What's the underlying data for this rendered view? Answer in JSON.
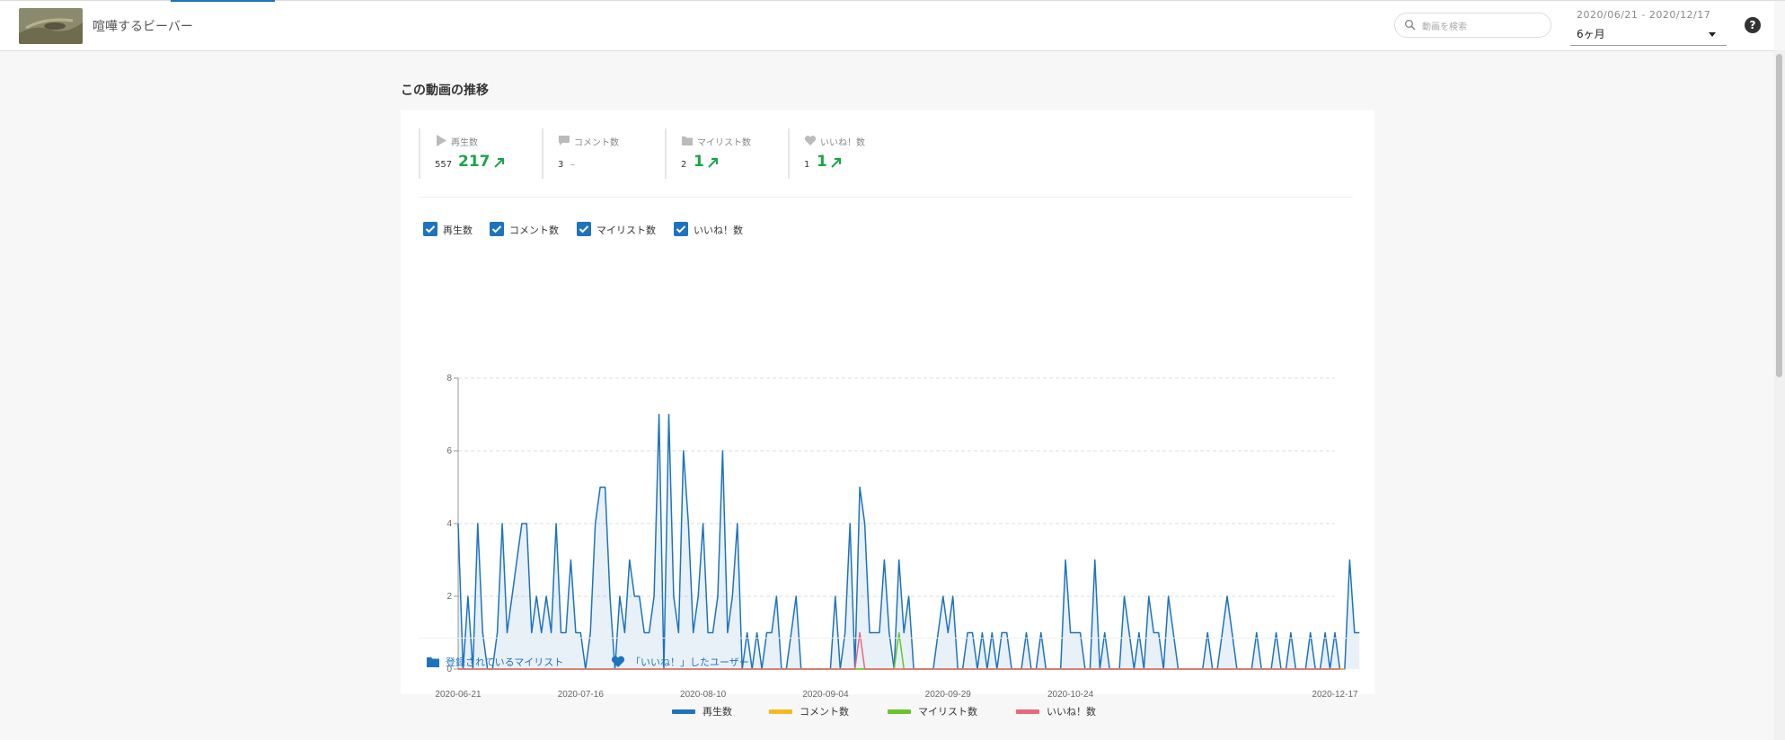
{
  "header": {
    "video_title": "喧嘩するビーバー",
    "search_placeholder": "動画を検索",
    "date_range": "2020/06/21 - 2020/12/17",
    "period_label": "6ヶ月",
    "help_label": "?"
  },
  "section": {
    "title": "この動画の推移"
  },
  "stats": [
    {
      "icon": "play-icon",
      "label": "再生数",
      "total": "557",
      "delta": "217",
      "trend": "up"
    },
    {
      "icon": "comment-icon",
      "label": "コメント数",
      "total": "3",
      "delta": "",
      "trend": "none",
      "dash": "–"
    },
    {
      "icon": "folder-icon",
      "label": "マイリスト数",
      "total": "2",
      "delta": "1",
      "trend": "up"
    },
    {
      "icon": "heart-icon",
      "label": "いいね！数",
      "total": "1",
      "delta": "1",
      "trend": "up"
    }
  ],
  "filters": [
    {
      "label": "再生数",
      "checked": true
    },
    {
      "label": "コメント数",
      "checked": true
    },
    {
      "label": "マイリスト数",
      "checked": true
    },
    {
      "label": "いいね！数",
      "checked": true
    }
  ],
  "links": {
    "mylist": "登録されているマイリスト",
    "likes": "「いいね！」したユーザー"
  },
  "colors": {
    "accent": "#1e73be",
    "positive": "#1aa54a",
    "views": "#1e73be",
    "comments": "#f5b91e",
    "mylists": "#6ac42c",
    "likes": "#e8687c"
  },
  "chart_data": {
    "type": "line",
    "x_start": "2020-06-21",
    "x_end": "2020-12-17",
    "x_tick_labels": [
      "2020-06-21",
      "2020-07-16",
      "2020-08-10",
      "2020-09-04",
      "2020-09-29",
      "2020-10-24",
      "2020-12-17"
    ],
    "y_ticks": [
      0,
      2,
      4,
      6,
      8
    ],
    "ylim": [
      0,
      8
    ],
    "grid": true,
    "legend": "bottom-center",
    "series": [
      {
        "name": "再生数",
        "color": "#1e73be",
        "area": true,
        "values": [
          4,
          0,
          2,
          0,
          4,
          1,
          0,
          0,
          1,
          4,
          1,
          2,
          3,
          4,
          4,
          1,
          2,
          1,
          2,
          1,
          4,
          1,
          1,
          3,
          1,
          1,
          0,
          1,
          4,
          5,
          5,
          2,
          0,
          2,
          1,
          3,
          2,
          2,
          1,
          1,
          2,
          7,
          0,
          7,
          2,
          1,
          6,
          4,
          1,
          2,
          4,
          1,
          1,
          2,
          6,
          1,
          2,
          4,
          0,
          1,
          0,
          1,
          0,
          1,
          1,
          2,
          0,
          0,
          1,
          2,
          0,
          0,
          0,
          0,
          0,
          0,
          0,
          2,
          0,
          1,
          4,
          0,
          5,
          4,
          1,
          1,
          1,
          3,
          1,
          0,
          3,
          1,
          2,
          0,
          0,
          0,
          0,
          0,
          1,
          2,
          1,
          2,
          0,
          0,
          1,
          1,
          0,
          1,
          0,
          1,
          0,
          1,
          1,
          0,
          0,
          0,
          1,
          0,
          0,
          1,
          0,
          0,
          0,
          0,
          3,
          1,
          1,
          1,
          0,
          0,
          3,
          0,
          1,
          0,
          0,
          0,
          2,
          1,
          0,
          1,
          0,
          2,
          1,
          1,
          0,
          2,
          1,
          0,
          0,
          0,
          0,
          0,
          0,
          1,
          0,
          0,
          1,
          2,
          1,
          0,
          0,
          0,
          0,
          1,
          0,
          0,
          0,
          1,
          0,
          0,
          1,
          0,
          0,
          0,
          1,
          0,
          0,
          1,
          0,
          1,
          0,
          0,
          3,
          1,
          1
        ]
      },
      {
        "name": "コメント数",
        "color": "#f5b91e",
        "area": false,
        "values": [
          0,
          0,
          0,
          0,
          0,
          0,
          0,
          0,
          0,
          0,
          0,
          0,
          0,
          0,
          0,
          0,
          0,
          0,
          0,
          0,
          0,
          0,
          0,
          0,
          0,
          0,
          0,
          0,
          0,
          0,
          0,
          0,
          0,
          0,
          0,
          0,
          0,
          0,
          0,
          0,
          0,
          0,
          0,
          0,
          0,
          0,
          0,
          0,
          0,
          0,
          0,
          0,
          0,
          0,
          0,
          0,
          0,
          0,
          0,
          0,
          0,
          0,
          0,
          0,
          0,
          0,
          0,
          0,
          0,
          0,
          0,
          0,
          0,
          0,
          0,
          0,
          0,
          0,
          0,
          0,
          0,
          0,
          0,
          0,
          0,
          0,
          0,
          0,
          0,
          0,
          0,
          0,
          0,
          0,
          0,
          0,
          0,
          0,
          0,
          0,
          0,
          0,
          0,
          0,
          0,
          0,
          0,
          0,
          0,
          0,
          0,
          0,
          0,
          0,
          0,
          0,
          0,
          0,
          0,
          0,
          0,
          0,
          0,
          0,
          0,
          0,
          0,
          0,
          0,
          0,
          0,
          0,
          0,
          0,
          0,
          0,
          0,
          0,
          0,
          0,
          0,
          0,
          0,
          0,
          0,
          0,
          0,
          0,
          0,
          0,
          0,
          0,
          0,
          0,
          0,
          0,
          0,
          0,
          0,
          0,
          0,
          0,
          0,
          0,
          0,
          0,
          0,
          0,
          0,
          0,
          0,
          0,
          0,
          0,
          0,
          0,
          0,
          0,
          0,
          0,
          0,
          0
        ]
      },
      {
        "name": "マイリスト数",
        "color": "#6ac42c",
        "area": false,
        "values": [
          0,
          0,
          0,
          0,
          0,
          0,
          0,
          0,
          0,
          0,
          0,
          0,
          0,
          0,
          0,
          0,
          0,
          0,
          0,
          0,
          0,
          0,
          0,
          0,
          0,
          0,
          0,
          0,
          0,
          0,
          0,
          0,
          0,
          0,
          0,
          0,
          0,
          0,
          0,
          0,
          0,
          0,
          0,
          0,
          0,
          0,
          0,
          0,
          0,
          0,
          0,
          0,
          0,
          0,
          0,
          0,
          0,
          0,
          0,
          0,
          0,
          0,
          0,
          0,
          0,
          0,
          0,
          0,
          0,
          0,
          0,
          0,
          0,
          0,
          0,
          0,
          0,
          0,
          0,
          0,
          0,
          0,
          0,
          0,
          0,
          0,
          0,
          0,
          0,
          0,
          1,
          0,
          0,
          0,
          0,
          0,
          0,
          0,
          0,
          0,
          0,
          0,
          0,
          0,
          0,
          0,
          0,
          0,
          0,
          0,
          0,
          0,
          0,
          0,
          0,
          0,
          0,
          0,
          0,
          0,
          0,
          0,
          0,
          0,
          0,
          0,
          0,
          0,
          0,
          0,
          0,
          0,
          0,
          0,
          0,
          0,
          0,
          0,
          0,
          0,
          0,
          0,
          0,
          0,
          0,
          0,
          0,
          0,
          0,
          0,
          0,
          0,
          0,
          0,
          0,
          0,
          0,
          0,
          0,
          0,
          0,
          0,
          0,
          0,
          0,
          0,
          0,
          0,
          0,
          0,
          0,
          0,
          0,
          0,
          0,
          0,
          0,
          0,
          0,
          0,
          0
        ]
      },
      {
        "name": "いいね！数",
        "color": "#e8687c",
        "area": false,
        "values": [
          0,
          0,
          0,
          0,
          0,
          0,
          0,
          0,
          0,
          0,
          0,
          0,
          0,
          0,
          0,
          0,
          0,
          0,
          0,
          0,
          0,
          0,
          0,
          0,
          0,
          0,
          0,
          0,
          0,
          0,
          0,
          0,
          0,
          0,
          0,
          0,
          0,
          0,
          0,
          0,
          0,
          0,
          0,
          0,
          0,
          0,
          0,
          0,
          0,
          0,
          0,
          0,
          0,
          0,
          0,
          0,
          0,
          0,
          0,
          0,
          0,
          0,
          0,
          0,
          0,
          0,
          0,
          0,
          0,
          0,
          0,
          0,
          0,
          0,
          0,
          0,
          0,
          0,
          0,
          0,
          0,
          0,
          1,
          0,
          0,
          0,
          0,
          0,
          0,
          0,
          0,
          0,
          0,
          0,
          0,
          0,
          0,
          0,
          0,
          0,
          0,
          0,
          0,
          0,
          0,
          0,
          0,
          0,
          0,
          0,
          0,
          0,
          0,
          0,
          0,
          0,
          0,
          0,
          0,
          0,
          0,
          0,
          0,
          0,
          0,
          0,
          0,
          0,
          0,
          0,
          0,
          0,
          0,
          0,
          0,
          0,
          0,
          0,
          0,
          0,
          0,
          0,
          0,
          0,
          0,
          0,
          0,
          0,
          0,
          0,
          0,
          0,
          0,
          0,
          0,
          0,
          0,
          0,
          0,
          0,
          0,
          0,
          0,
          0,
          0,
          0,
          0,
          0,
          0,
          0,
          0,
          0,
          0,
          0,
          0,
          0,
          0,
          0,
          0,
          0,
          0
        ]
      }
    ]
  }
}
